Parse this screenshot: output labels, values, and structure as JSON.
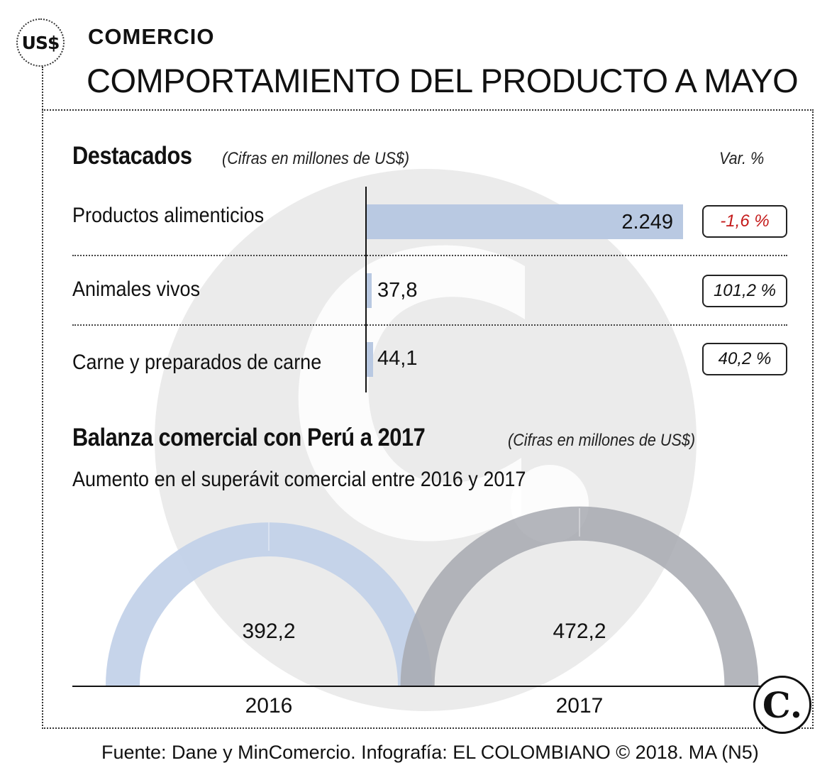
{
  "header": {
    "badge": "US$",
    "kicker": "COMERCIO",
    "headline": "COMPORTAMIENTO DEL PRODUCTO A MAYO"
  },
  "watermark_icon": "el-colombiano-c-logo",
  "colors": {
    "bar": "#b9c9e2",
    "negative": "#c41a1a",
    "arc_2016": "#c3d2e9",
    "arc_2017": "#a7a9b0",
    "overlap": "#7c8aa2"
  },
  "destacados": {
    "title": "Destacados",
    "note": "(Cifras en millones de US$)",
    "var_header": "Var. %"
  },
  "balanza": {
    "title": "Balanza comercial con Perú a 2017",
    "note": "(Cifras en millones de US$)",
    "subtitle": "Aumento en el superávit comercial entre 2016 y 2017"
  },
  "chart_data": [
    {
      "type": "bar",
      "orientation": "horizontal",
      "title": "Destacados",
      "categories": [
        "Productos alimenticios",
        "Animales vivos",
        "Carne y preparados de carne"
      ],
      "values": [
        2249,
        37.8,
        44.1
      ],
      "value_labels": [
        "2.249",
        "37,8",
        "44,1"
      ],
      "variation_labels": [
        "-1,6 %",
        "101,2 %",
        "40,2 %"
      ],
      "variation_values": [
        -1.6,
        101.2,
        40.2
      ],
      "xlim": [
        0,
        2249
      ]
    },
    {
      "type": "semicircle",
      "title": "Balanza comercial con Perú a 2017",
      "categories": [
        "2016",
        "2017"
      ],
      "values": [
        392.2,
        472.2
      ],
      "value_labels": [
        "392,2",
        "472,2"
      ]
    }
  ],
  "footer": {
    "source": "Fuente: Dane y MinComercio. Infografía: EL COLOMBIANO © 2018. MA (N5)",
    "logo_icon": "el-colombiano-logo-icon",
    "logo_text": "C."
  }
}
